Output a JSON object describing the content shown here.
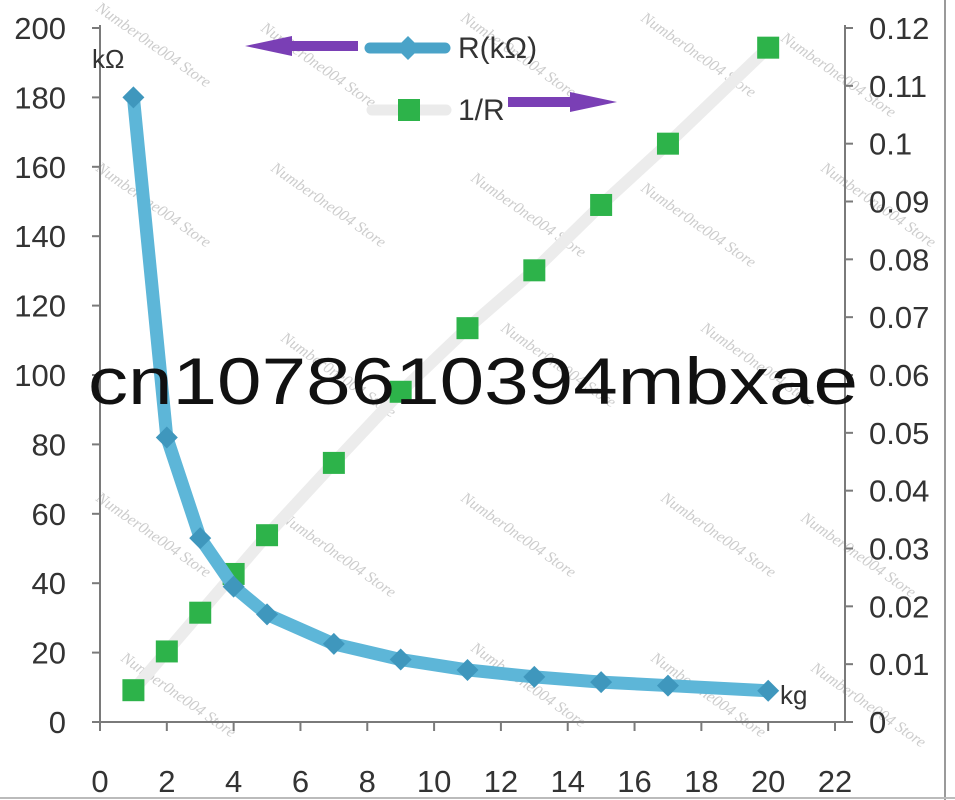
{
  "chart_data": {
    "type": "line",
    "x_unit": "kg",
    "xlim": [
      0,
      22
    ],
    "x_ticks": [
      "0",
      "2",
      "4",
      "6",
      "8",
      "10",
      "12",
      "14",
      "16",
      "18",
      "20",
      "22"
    ],
    "y_left": {
      "unit": "kΩ",
      "lim": [
        0,
        200
      ],
      "ticks": [
        "0",
        "20",
        "40",
        "60",
        "80",
        "100",
        "120",
        "140",
        "160",
        "180",
        "200"
      ]
    },
    "y_right": {
      "lim": [
        0,
        0.12
      ],
      "ticks": [
        "0",
        "0.01",
        "0.02",
        "0.03",
        "0.04",
        "0.05",
        "0.06",
        "0.07",
        "0.08",
        "0.09",
        "0.1",
        "0.11",
        "0.12"
      ]
    },
    "series": [
      {
        "name": "R(kΩ)",
        "axis": "left",
        "marker": "diamond",
        "color": "#4aa3c8",
        "x": [
          1,
          2,
          3,
          4,
          5,
          7,
          9,
          11,
          13,
          15,
          17,
          20
        ],
        "y": [
          180,
          82,
          53,
          39,
          31,
          22.5,
          18,
          15,
          13,
          11.5,
          10.5,
          9
        ]
      },
      {
        "name": "1/R",
        "axis": "right",
        "marker": "square",
        "color": "#2db34a",
        "x": [
          1,
          2,
          3,
          4,
          5,
          7,
          9,
          11,
          13,
          15,
          17,
          20
        ],
        "y": [
          0.0055,
          0.0122,
          0.0189,
          0.0256,
          0.0323,
          0.0448,
          0.0571,
          0.0681,
          0.0781,
          0.0894,
          0.1,
          0.1166
        ]
      }
    ],
    "legend": {
      "position": "top-center",
      "items": [
        "R(kΩ)",
        "1/R"
      ],
      "arrow_color": "#7a3fb5"
    },
    "grid": false
  },
  "watermark": {
    "text": "cn1078610394mbxae",
    "store_text": "Number0ne004 Store"
  }
}
